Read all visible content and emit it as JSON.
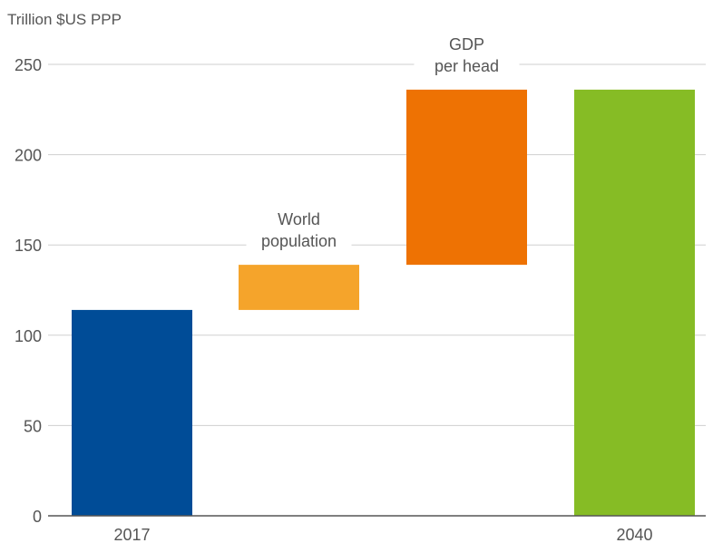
{
  "chart_data": {
    "type": "bar",
    "variant": "waterfall",
    "ylabel": "Trillion $US PPP",
    "ylim": [
      0,
      250
    ],
    "yticks": [
      0,
      50,
      100,
      150,
      200,
      250
    ],
    "grid": true,
    "bars": [
      {
        "key": "2017",
        "category_label": "2017",
        "annotation": [],
        "start": 0,
        "end": 114,
        "color": "#004c97"
      },
      {
        "key": "population",
        "category_label": "",
        "annotation": [
          "World",
          "population"
        ],
        "start": 114,
        "end": 139,
        "color": "#f5a42b"
      },
      {
        "key": "gdp",
        "category_label": "",
        "annotation": [
          "GDP",
          "per head"
        ],
        "start": 139,
        "end": 236,
        "color": "#ee7203"
      },
      {
        "key": "2040",
        "category_label": "2040",
        "annotation": [],
        "start": 0,
        "end": 236,
        "color": "#86bc25"
      }
    ]
  }
}
